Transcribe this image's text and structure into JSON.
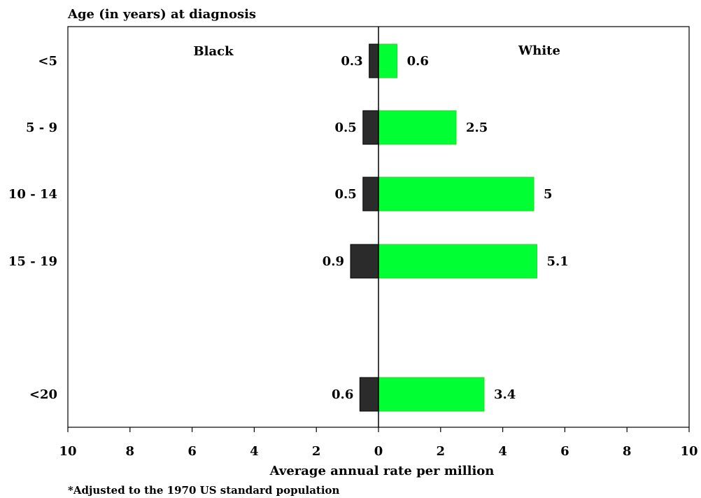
{
  "chart_data": {
    "type": "bar",
    "orientation": "horizontal-diverging",
    "title": "Age (in years) at diagnosis",
    "xlabel": "Average annual rate per million",
    "footnote": "*Adjusted to the 1970 US standard population",
    "categories": [
      "<5",
      "5 - 9",
      "10 - 14",
      "15 - 19",
      "<20"
    ],
    "xlim": [
      -10,
      10
    ],
    "x_ticks": [
      -10,
      -8,
      -6,
      -4,
      -2,
      0,
      2,
      4,
      6,
      8,
      10
    ],
    "x_tick_labels": [
      "10",
      "8",
      "6",
      "4",
      "2",
      "0",
      "2",
      "4",
      "6",
      "8",
      "10"
    ],
    "series": [
      {
        "name": "Black",
        "side": "left",
        "color": "#2b2b2b",
        "values": [
          0.3,
          0.5,
          0.5,
          0.9,
          0.6
        ]
      },
      {
        "name": "White",
        "side": "right",
        "color": "#00ff33",
        "values": [
          0.6,
          2.5,
          5,
          5.1,
          3.4
        ]
      }
    ],
    "legend": "top-inside",
    "grid": false
  }
}
